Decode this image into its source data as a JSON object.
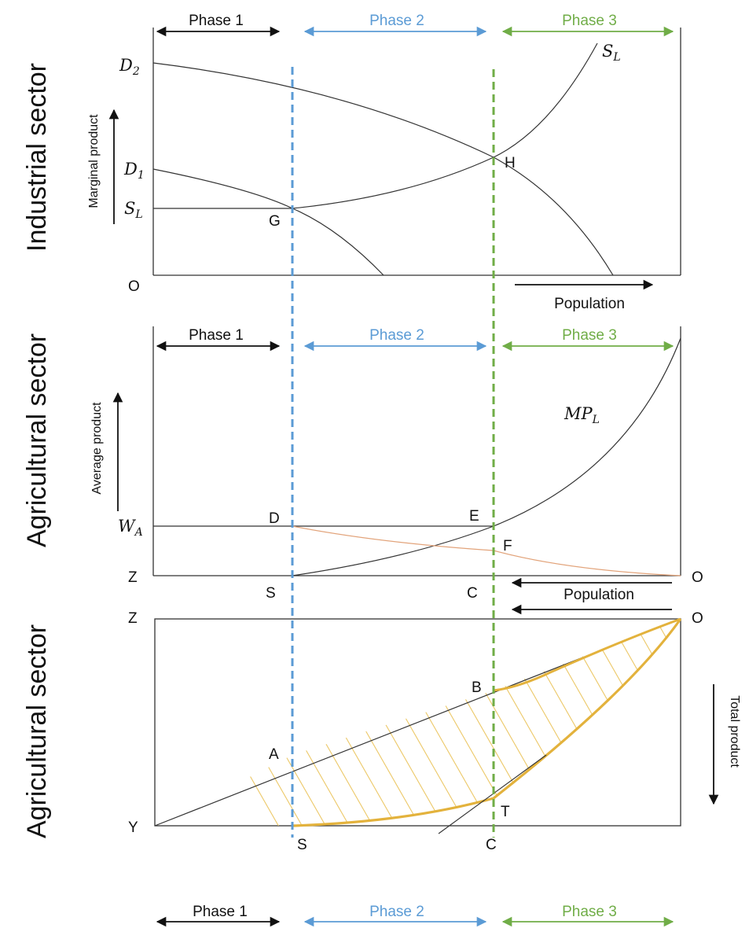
{
  "phases": {
    "phase1": "Phase 1",
    "phase2": "Phase 2",
    "phase3": "Phase 3"
  },
  "colors": {
    "phase1": "#111111",
    "phase2": "#5b9bd5",
    "phase3": "#70ad47",
    "total_product": "#e3b23c",
    "hatch": "#e9c46a",
    "ap_curve": "#e2a37a",
    "axis": "#333333"
  },
  "panels": {
    "industrial": {
      "title": "Industrial sector",
      "y_axis_label": "Marginal product",
      "x_axis_label": "Population",
      "origin_label": "O",
      "curve_labels": {
        "d2": "D",
        "d2_sub": "2",
        "d1": "D",
        "d1_sub": "1",
        "sl_left": "S",
        "sl_left_sub": "L",
        "sl_top": "S",
        "sl_top_sub": "L"
      },
      "points": {
        "g": "G",
        "h": "H"
      }
    },
    "agri_average": {
      "title": "Agricultural sector",
      "y_axis_label": "Average product",
      "x_axis_label": "Population",
      "curve_labels": {
        "mpl": "MP",
        "mpl_sub": "L",
        "wa": "W",
        "wa_sub": "A"
      },
      "points": {
        "d": "D",
        "e": "E",
        "f": "F",
        "z": "Z",
        "s": "S",
        "c": "C",
        "o": "O"
      }
    },
    "agri_total": {
      "title": "Agricultural sector",
      "y_axis_label": "Total product",
      "points": {
        "z": "Z",
        "o": "O",
        "b": "B",
        "a": "A",
        "t": "T",
        "y": "Y",
        "s": "S",
        "c": "C"
      }
    }
  }
}
